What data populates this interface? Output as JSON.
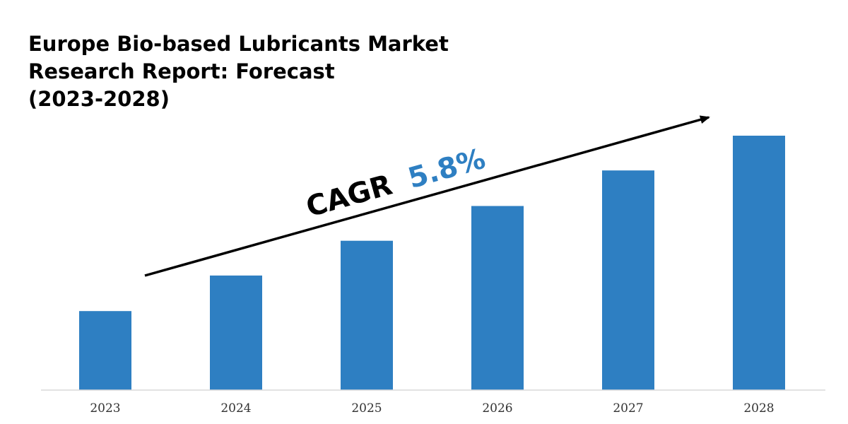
{
  "title_lines": [
    "Europe Bio-based Lubricants Market",
    "Research Report: Forecast",
    "(2023-2028)"
  ],
  "annotation": {
    "prefix": "CAGR",
    "value": "5.8%",
    "prefix_color": "#000000",
    "value_color": "#2e7fc2"
  },
  "colors": {
    "bar": "#2e7fc2",
    "axis": "#d9d9d9",
    "arrow": "#000000"
  },
  "chart_data": {
    "type": "bar",
    "categories": [
      "2023",
      "2024",
      "2025",
      "2026",
      "2027",
      "2028"
    ],
    "values": [
      1.0,
      1.45,
      1.89,
      2.33,
      2.78,
      3.22
    ],
    "ylim": [
      0,
      3.5
    ],
    "grid": false,
    "legend": "none",
    "axis_labels_visible": false
  }
}
